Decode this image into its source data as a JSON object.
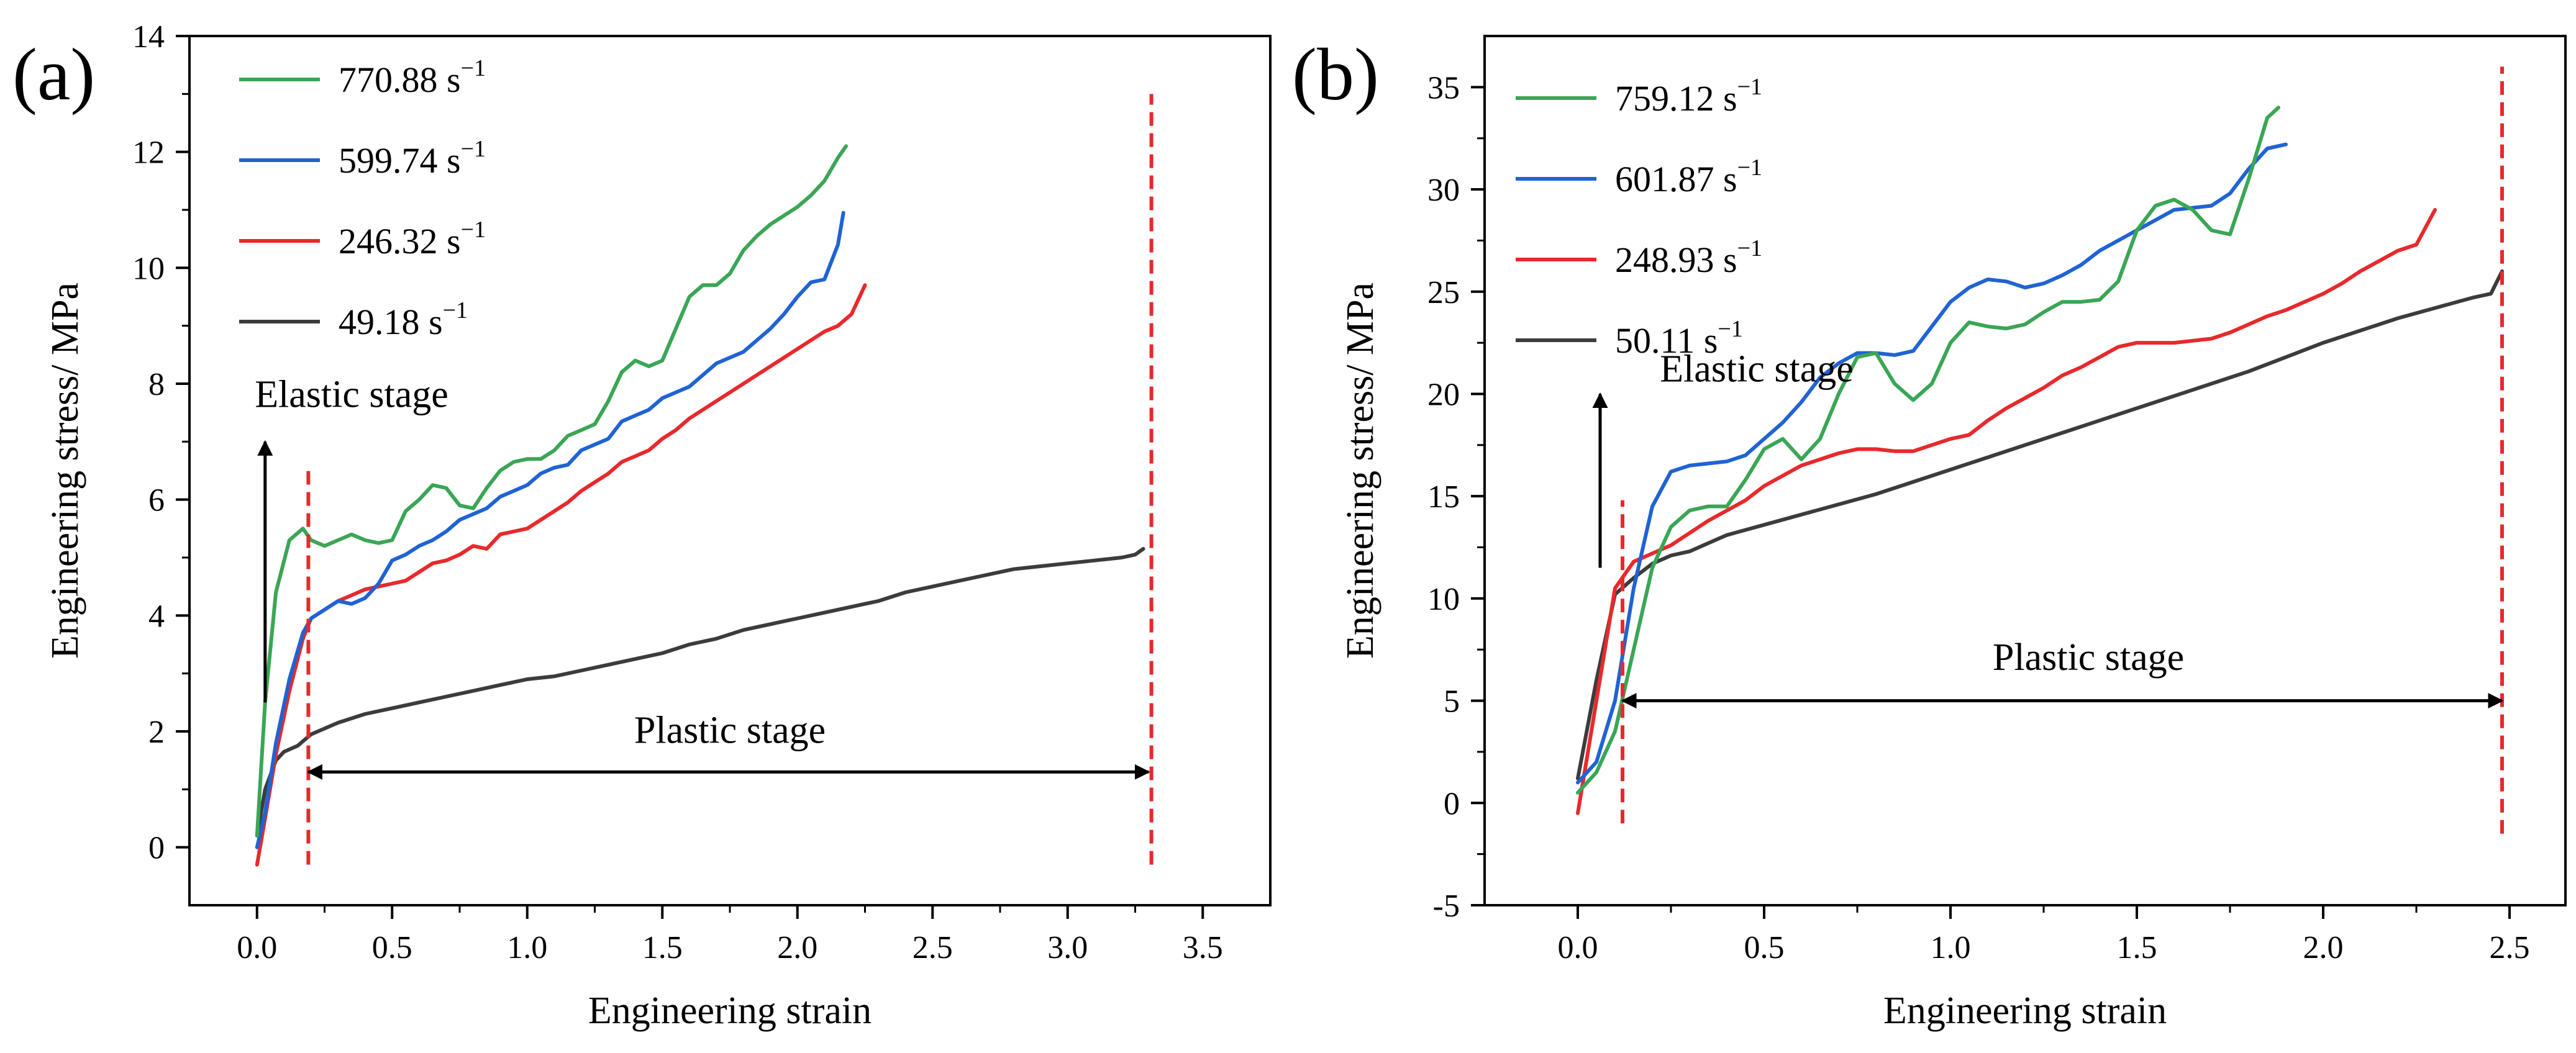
{
  "figure": {
    "background": "#ffffff"
  },
  "chart_data": [
    {
      "id": "a",
      "type": "line",
      "panel_label": "(a)",
      "xlabel": "Engineering strain",
      "ylabel": "Engineering stress/ MPa",
      "xlim": [
        -0.25,
        3.75
      ],
      "ylim": [
        -1,
        14
      ],
      "xticks": [
        0.0,
        0.5,
        1.0,
        1.5,
        2.0,
        2.5,
        3.0,
        3.5
      ],
      "xtick_labels": [
        "0.0",
        "0.5",
        "1.0",
        "1.5",
        "2.0",
        "2.5",
        "3.0",
        "3.5"
      ],
      "yticks": [
        0,
        2,
        4,
        6,
        8,
        10,
        12,
        14
      ],
      "ytick_labels": [
        "0",
        "2",
        "4",
        "6",
        "8",
        "10",
        "12",
        "14"
      ],
      "legend_position": "top-left",
      "series": [
        {
          "name": "770.88 s",
          "unit_sup": "−1",
          "color": "#3aa655",
          "x": [
            0,
            0.03,
            0.07,
            0.12,
            0.17,
            0.2,
            0.25,
            0.3,
            0.35,
            0.4,
            0.45,
            0.5,
            0.55,
            0.6,
            0.65,
            0.7,
            0.75,
            0.8,
            0.85,
            0.9,
            0.95,
            1.0,
            1.05,
            1.1,
            1.15,
            1.2,
            1.25,
            1.3,
            1.35,
            1.4,
            1.45,
            1.5,
            1.55,
            1.6,
            1.65,
            1.7,
            1.75,
            1.8,
            1.85,
            1.9,
            1.95,
            2.0,
            2.05,
            2.1,
            2.15,
            2.18
          ],
          "y": [
            0.2,
            2.5,
            4.4,
            5.3,
            5.5,
            5.3,
            5.2,
            5.3,
            5.4,
            5.3,
            5.25,
            5.3,
            5.8,
            6.0,
            6.25,
            6.2,
            5.9,
            5.85,
            6.2,
            6.5,
            6.65,
            6.7,
            6.7,
            6.85,
            7.1,
            7.2,
            7.3,
            7.7,
            8.2,
            8.4,
            8.3,
            8.4,
            8.95,
            9.5,
            9.7,
            9.7,
            9.9,
            10.3,
            10.55,
            10.75,
            10.9,
            11.05,
            11.25,
            11.5,
            11.9,
            12.1
          ]
        },
        {
          "name": "599.74 s",
          "unit_sup": "−1",
          "color": "#1f63d4",
          "x": [
            0,
            0.03,
            0.07,
            0.12,
            0.17,
            0.2,
            0.25,
            0.3,
            0.35,
            0.4,
            0.45,
            0.5,
            0.55,
            0.6,
            0.65,
            0.7,
            0.75,
            0.8,
            0.85,
            0.9,
            0.95,
            1.0,
            1.05,
            1.1,
            1.15,
            1.2,
            1.25,
            1.3,
            1.35,
            1.4,
            1.45,
            1.5,
            1.55,
            1.6,
            1.65,
            1.7,
            1.75,
            1.8,
            1.85,
            1.9,
            1.95,
            2.0,
            2.05,
            2.1,
            2.15,
            2.17
          ],
          "y": [
            0.0,
            0.6,
            1.8,
            2.9,
            3.7,
            3.95,
            4.1,
            4.25,
            4.2,
            4.3,
            4.55,
            4.95,
            5.05,
            5.2,
            5.3,
            5.45,
            5.65,
            5.75,
            5.85,
            6.05,
            6.15,
            6.25,
            6.45,
            6.55,
            6.6,
            6.85,
            6.95,
            7.05,
            7.35,
            7.45,
            7.55,
            7.75,
            7.85,
            7.95,
            8.15,
            8.35,
            8.45,
            8.55,
            8.75,
            8.95,
            9.2,
            9.5,
            9.75,
            9.8,
            10.4,
            10.95
          ]
        },
        {
          "name": "246.32 s",
          "unit_sup": "−1",
          "color": "#e8292b",
          "x": [
            0,
            0.03,
            0.07,
            0.12,
            0.17,
            0.2,
            0.25,
            0.3,
            0.35,
            0.4,
            0.45,
            0.5,
            0.55,
            0.6,
            0.65,
            0.7,
            0.75,
            0.8,
            0.85,
            0.9,
            0.95,
            1.0,
            1.05,
            1.1,
            1.15,
            1.2,
            1.25,
            1.3,
            1.35,
            1.4,
            1.45,
            1.5,
            1.55,
            1.6,
            1.65,
            1.7,
            1.75,
            1.8,
            1.85,
            1.9,
            1.95,
            2.0,
            2.05,
            2.1,
            2.15,
            2.2,
            2.25
          ],
          "y": [
            -0.3,
            0.5,
            1.6,
            2.7,
            3.6,
            3.95,
            4.1,
            4.25,
            4.35,
            4.45,
            4.5,
            4.55,
            4.6,
            4.75,
            4.9,
            4.95,
            5.05,
            5.2,
            5.15,
            5.4,
            5.45,
            5.5,
            5.65,
            5.8,
            5.95,
            6.15,
            6.3,
            6.45,
            6.65,
            6.75,
            6.85,
            7.05,
            7.2,
            7.4,
            7.55,
            7.7,
            7.85,
            8.0,
            8.15,
            8.3,
            8.45,
            8.6,
            8.75,
            8.9,
            9.0,
            9.2,
            9.7
          ]
        },
        {
          "name": "49.18 s",
          "unit_sup": "−1",
          "color": "#3c3c3c",
          "x": [
            0,
            0.03,
            0.07,
            0.1,
            0.15,
            0.2,
            0.3,
            0.4,
            0.5,
            0.6,
            0.7,
            0.8,
            0.9,
            1.0,
            1.1,
            1.2,
            1.3,
            1.4,
            1.5,
            1.6,
            1.7,
            1.8,
            1.9,
            2.0,
            2.1,
            2.2,
            2.3,
            2.4,
            2.5,
            2.6,
            2.7,
            2.8,
            2.9,
            3.0,
            3.1,
            3.2,
            3.25,
            3.28
          ],
          "y": [
            0.2,
            1.0,
            1.5,
            1.65,
            1.75,
            1.95,
            2.15,
            2.3,
            2.4,
            2.5,
            2.6,
            2.7,
            2.8,
            2.9,
            2.95,
            3.05,
            3.15,
            3.25,
            3.35,
            3.5,
            3.6,
            3.75,
            3.85,
            3.95,
            4.05,
            4.15,
            4.25,
            4.4,
            4.5,
            4.6,
            4.7,
            4.8,
            4.85,
            4.9,
            4.95,
            5.0,
            5.05,
            5.15
          ]
        }
      ],
      "annotations": {
        "elastic": "Elastic stage",
        "plastic": "Plastic stage",
        "elastic_arrow_x": 0.03,
        "elastic_arrow_y": [
          2.5,
          7.0
        ],
        "plastic_arrow_x": [
          0.19,
          3.3
        ],
        "plastic_arrow_y": 1.3,
        "red_lines": [
          {
            "x": 0.19,
            "y": [
              -0.3,
              6.5
            ]
          },
          {
            "x": 3.31,
            "y": [
              -0.3,
              13.0
            ]
          }
        ]
      }
    },
    {
      "id": "b",
      "type": "line",
      "panel_label": "(b)",
      "xlabel": "Engineering strain",
      "ylabel": "Engineering stress/ MPa",
      "xlim": [
        -0.25,
        2.65
      ],
      "ylim": [
        -5,
        37.5
      ],
      "xticks": [
        0.0,
        0.5,
        1.0,
        1.5,
        2.0,
        2.5
      ],
      "xtick_labels": [
        "0.0",
        "0.5",
        "1.0",
        "1.5",
        "2.0",
        "2.5"
      ],
      "yticks": [
        -5,
        0,
        5,
        10,
        15,
        20,
        25,
        30,
        35
      ],
      "ytick_labels": [
        "-5",
        "0",
        "5",
        "10",
        "15",
        "20",
        "25",
        "30",
        "35"
      ],
      "legend_position": "top-left",
      "series": [
        {
          "name": "759.12 s",
          "unit_sup": "−1",
          "color": "#3aa655",
          "x": [
            0,
            0.05,
            0.1,
            0.15,
            0.2,
            0.25,
            0.3,
            0.35,
            0.4,
            0.45,
            0.5,
            0.55,
            0.6,
            0.65,
            0.7,
            0.75,
            0.8,
            0.85,
            0.9,
            0.95,
            1.0,
            1.05,
            1.1,
            1.15,
            1.2,
            1.25,
            1.3,
            1.35,
            1.4,
            1.45,
            1.5,
            1.55,
            1.6,
            1.65,
            1.7,
            1.75,
            1.8,
            1.85,
            1.88
          ],
          "y": [
            0.5,
            1.5,
            3.5,
            7.5,
            11.5,
            13.5,
            14.3,
            14.5,
            14.5,
            15.8,
            17.3,
            17.8,
            16.8,
            17.8,
            20.0,
            21.8,
            22.0,
            20.5,
            19.7,
            20.5,
            22.5,
            23.5,
            23.3,
            23.2,
            23.4,
            24.0,
            24.5,
            24.5,
            24.6,
            25.5,
            28.0,
            29.2,
            29.5,
            29.0,
            28.0,
            27.8,
            30.5,
            33.5,
            34.0
          ]
        },
        {
          "name": "601.87 s",
          "unit_sup": "−1",
          "color": "#1f63d4",
          "x": [
            0,
            0.05,
            0.1,
            0.15,
            0.2,
            0.25,
            0.3,
            0.35,
            0.4,
            0.45,
            0.5,
            0.55,
            0.6,
            0.65,
            0.7,
            0.75,
            0.8,
            0.85,
            0.9,
            0.95,
            1.0,
            1.05,
            1.1,
            1.15,
            1.2,
            1.25,
            1.3,
            1.35,
            1.4,
            1.45,
            1.5,
            1.55,
            1.6,
            1.65,
            1.7,
            1.75,
            1.8,
            1.85,
            1.9
          ],
          "y": [
            1.0,
            2.0,
            5.0,
            10.5,
            14.5,
            16.2,
            16.5,
            16.6,
            16.7,
            17.0,
            17.8,
            18.6,
            19.6,
            20.8,
            21.5,
            22.0,
            22.0,
            21.9,
            22.1,
            23.3,
            24.5,
            25.2,
            25.6,
            25.5,
            25.2,
            25.4,
            25.8,
            26.3,
            27.0,
            27.5,
            28.0,
            28.5,
            29.0,
            29.1,
            29.2,
            29.8,
            31.0,
            32.0,
            32.2
          ]
        },
        {
          "name": "248.93 s",
          "unit_sup": "−1",
          "color": "#e8292b",
          "x": [
            0,
            0.05,
            0.1,
            0.15,
            0.2,
            0.25,
            0.3,
            0.35,
            0.4,
            0.45,
            0.5,
            0.55,
            0.6,
            0.65,
            0.7,
            0.75,
            0.8,
            0.85,
            0.9,
            0.95,
            1.0,
            1.05,
            1.1,
            1.15,
            1.2,
            1.25,
            1.3,
            1.35,
            1.4,
            1.45,
            1.5,
            1.55,
            1.6,
            1.65,
            1.7,
            1.75,
            1.8,
            1.85,
            1.9,
            1.95,
            2.0,
            2.05,
            2.1,
            2.15,
            2.2,
            2.25,
            2.3
          ],
          "y": [
            -0.5,
            5.0,
            10.5,
            11.8,
            12.2,
            12.6,
            13.2,
            13.8,
            14.3,
            14.8,
            15.5,
            16.0,
            16.5,
            16.8,
            17.1,
            17.3,
            17.3,
            17.2,
            17.2,
            17.5,
            17.8,
            18.0,
            18.7,
            19.3,
            19.8,
            20.3,
            20.9,
            21.3,
            21.8,
            22.3,
            22.5,
            22.5,
            22.5,
            22.6,
            22.7,
            23.0,
            23.4,
            23.8,
            24.1,
            24.5,
            24.9,
            25.4,
            26.0,
            26.5,
            27.0,
            27.3,
            29.0
          ]
        },
        {
          "name": "50.11 s",
          "unit_sup": "−1",
          "color": "#3c3c3c",
          "x": [
            0,
            0.05,
            0.1,
            0.15,
            0.2,
            0.25,
            0.3,
            0.35,
            0.4,
            0.5,
            0.6,
            0.7,
            0.8,
            0.9,
            1.0,
            1.1,
            1.2,
            1.3,
            1.4,
            1.5,
            1.6,
            1.7,
            1.8,
            1.9,
            2.0,
            2.1,
            2.2,
            2.3,
            2.4,
            2.45,
            2.48
          ],
          "y": [
            1.2,
            6.0,
            10.2,
            11.0,
            11.7,
            12.1,
            12.3,
            12.7,
            13.1,
            13.6,
            14.1,
            14.6,
            15.1,
            15.7,
            16.3,
            16.9,
            17.5,
            18.1,
            18.7,
            19.3,
            19.9,
            20.5,
            21.1,
            21.8,
            22.5,
            23.1,
            23.7,
            24.2,
            24.7,
            24.9,
            26.0
          ]
        }
      ],
      "annotations": {
        "elastic": "Elastic stage",
        "plastic": "Plastic stage",
        "elastic_arrow_x": 0.06,
        "elastic_arrow_y": [
          11.5,
          20.0
        ],
        "plastic_arrow_x": [
          0.12,
          2.48
        ],
        "plastic_arrow_y": 5.0,
        "red_lines": [
          {
            "x": 0.12,
            "y": [
              -1.0,
              14.8
            ]
          },
          {
            "x": 2.48,
            "y": [
              -1.5,
              36.0
            ]
          }
        ]
      }
    }
  ]
}
